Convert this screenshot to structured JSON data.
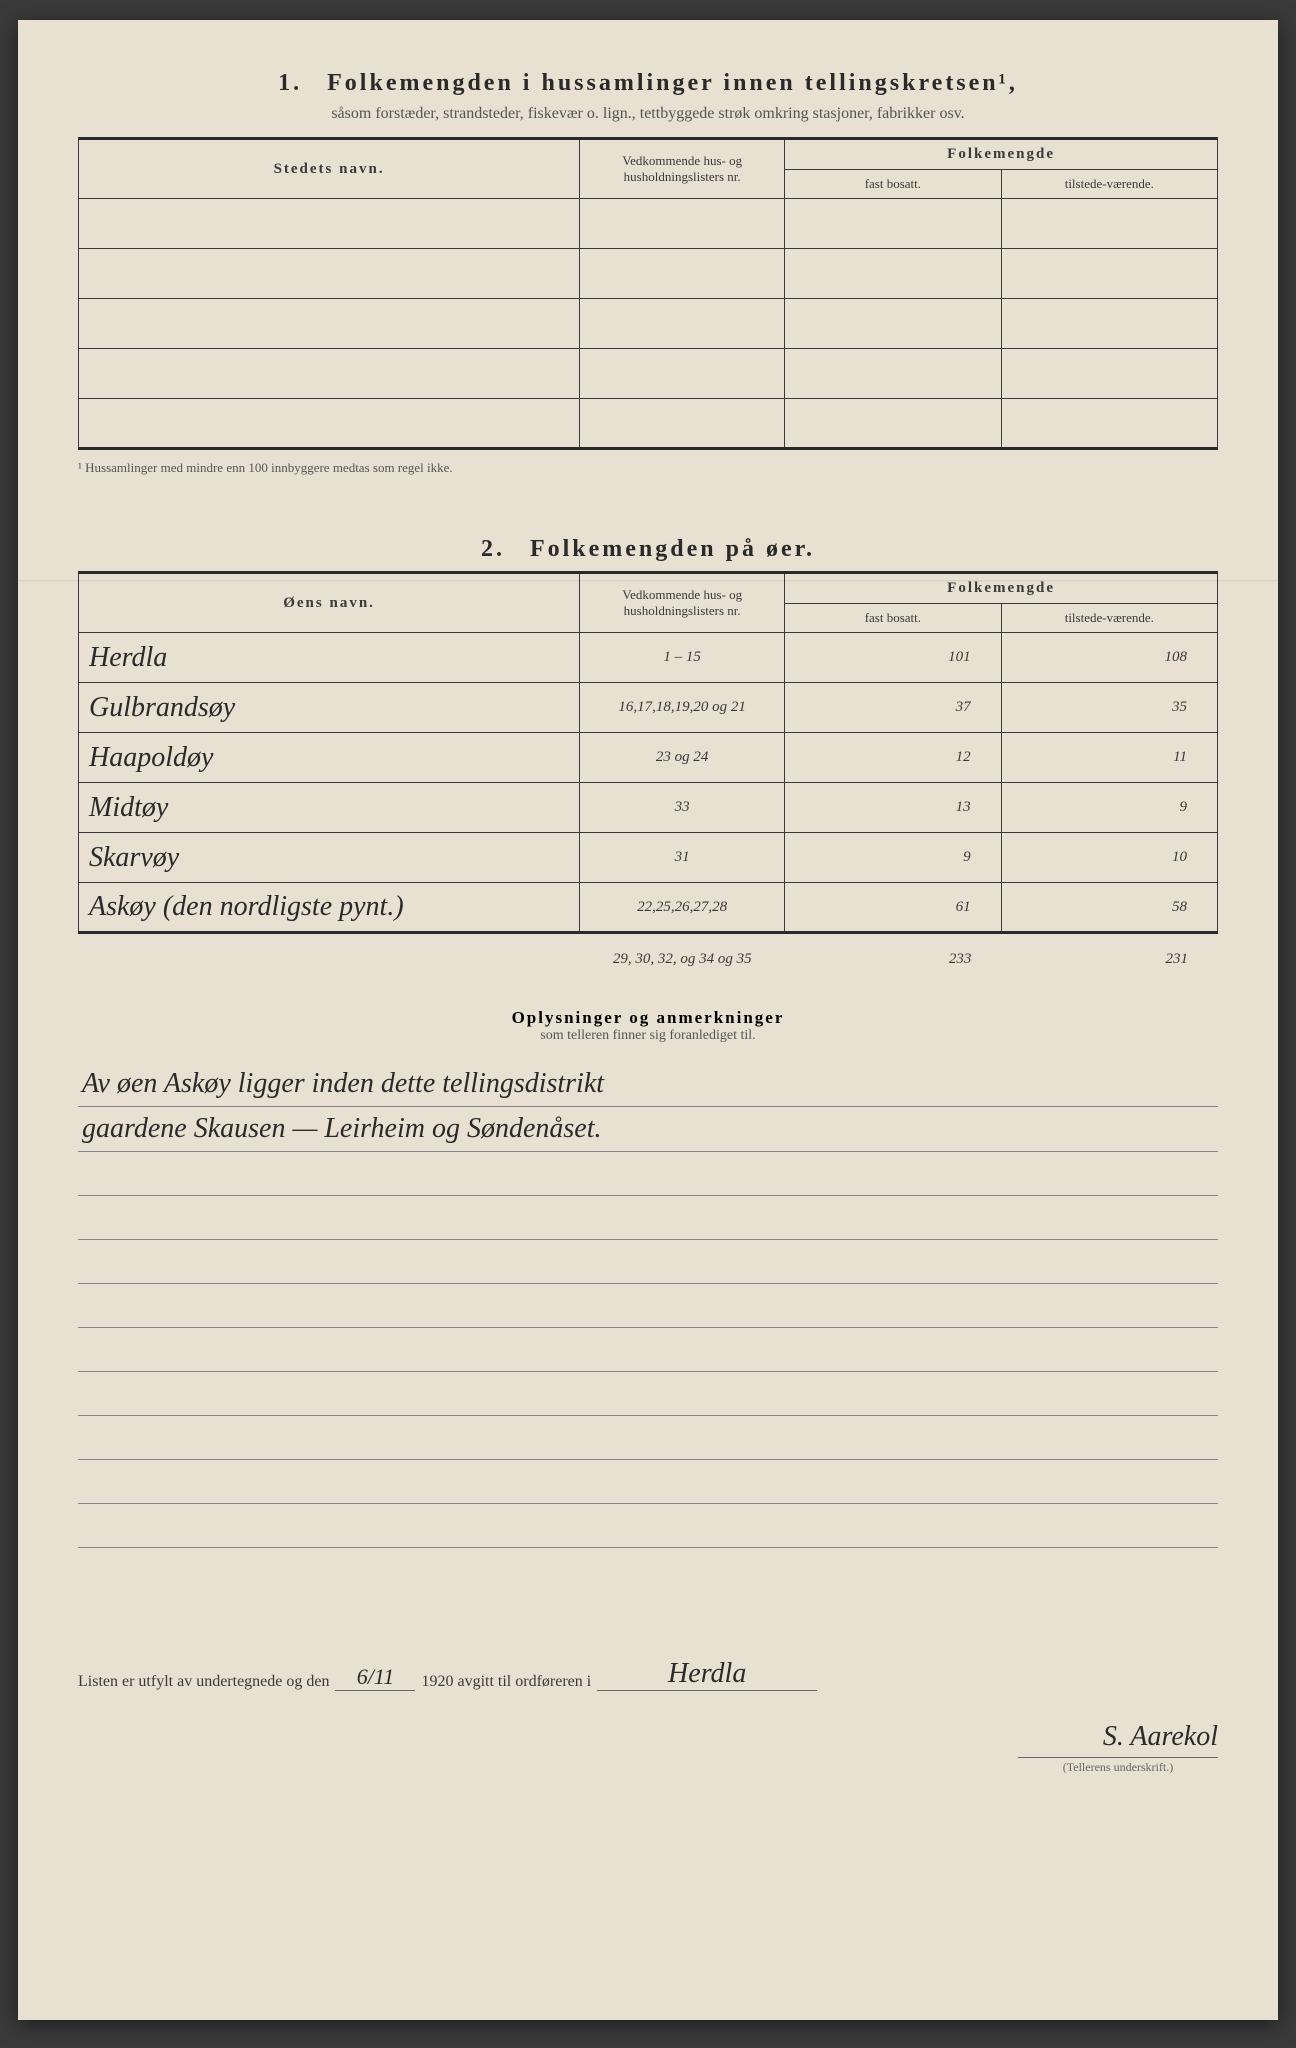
{
  "section1": {
    "number": "1.",
    "title": "Folkemengden i hussamlinger innen tellingskretsen¹,",
    "subtitle": "såsom forstæder, strandsteder, fiskevær o. lign., tettbyggede strøk omkring stasjoner, fabrikker osv.",
    "col_name": "Stedets navn.",
    "col_lists": "Vedkommende hus- og husholdningslisters nr.",
    "col_folke": "Folkemengde",
    "col_fast": "fast bosatt.",
    "col_til": "tilstede-værende.",
    "footnote": "¹ Hussamlinger med mindre enn 100 innbyggere medtas som regel ikke."
  },
  "section2": {
    "number": "2.",
    "title": "Folkemengden på øer.",
    "col_name": "Øens navn.",
    "col_lists": "Vedkommende hus- og husholdningslisters nr.",
    "col_folke": "Folkemengde",
    "col_fast": "fast bosatt.",
    "col_til": "tilstede-værende.",
    "rows": [
      {
        "name": "Herdla",
        "lists": "1 – 15",
        "fast": "101",
        "til": "108"
      },
      {
        "name": "Gulbrandsøy",
        "lists": "16,17,18,19,20 og 21",
        "fast": "37",
        "til": "35"
      },
      {
        "name": "Haapoldøy",
        "lists": "23 og 24",
        "fast": "12",
        "til": "11"
      },
      {
        "name": "Midtøy",
        "lists": "33",
        "fast": "13",
        "til": "9"
      },
      {
        "name": "Skarvøy",
        "lists": "31",
        "fast": "9",
        "til": "10"
      },
      {
        "name": "Askøy (den nordligste pynt.)",
        "lists": "22,25,26,27,28",
        "fast": "61",
        "til": "58"
      }
    ],
    "extra_lists": "29, 30, 32, og 34 og 35",
    "total_fast": "233",
    "total_til": "231"
  },
  "remarks": {
    "heading": "Oplysninger og anmerkninger",
    "sub": "som telleren finner sig foranlediget til.",
    "line1": "Av øen Askøy ligger inden dette tellingsdistrikt",
    "line2": "gaardene Skausen — Leirheim og Søndenåset."
  },
  "signoff": {
    "prefix": "Listen er utfylt av undertegnede og den",
    "date": "6/11",
    "year": "1920",
    "mid": "avgitt til ordføreren i",
    "place": "Herdla",
    "signature": "S. Aarekol",
    "sig_label": "(Tellerens underskrift.)"
  }
}
